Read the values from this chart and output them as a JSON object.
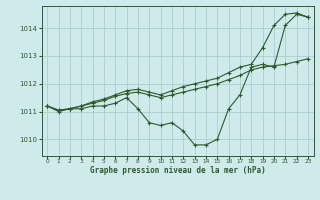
{
  "title": "Graphe pression niveau de la mer (hPa)",
  "background_color": "#ceeaea",
  "grid_color": "#aacece",
  "line_color": "#2d5a2d",
  "xlim": [
    -0.5,
    23.5
  ],
  "ylim": [
    1009.4,
    1014.8
  ],
  "xticks": [
    0,
    1,
    2,
    3,
    4,
    5,
    6,
    7,
    8,
    9,
    10,
    11,
    12,
    13,
    14,
    15,
    16,
    17,
    18,
    19,
    20,
    21,
    22,
    23
  ],
  "yticks": [
    1010,
    1011,
    1012,
    1013,
    1014
  ],
  "series": [
    {
      "x": [
        0,
        1,
        2,
        3,
        4,
        5,
        6,
        7,
        8,
        9,
        10,
        11,
        12,
        13,
        14,
        15,
        16,
        17,
        18,
        19,
        20,
        21,
        22,
        23
      ],
      "y": [
        1011.2,
        1011.0,
        1011.1,
        1011.1,
        1011.2,
        1011.2,
        1011.3,
        1011.5,
        1011.1,
        1010.6,
        1010.5,
        1010.6,
        1010.3,
        1009.8,
        1009.8,
        1010.0,
        1011.1,
        1011.6,
        1012.6,
        1012.7,
        1012.6,
        1014.1,
        1014.5,
        1014.4
      ]
    },
    {
      "x": [
        0,
        1,
        2,
        3,
        4,
        5,
        6,
        7,
        8,
        9,
        10,
        11,
        12,
        13,
        14,
        15,
        16,
        17,
        18,
        19,
        20,
        21,
        22,
        23
      ],
      "y": [
        1011.2,
        1011.05,
        1011.1,
        1011.2,
        1011.3,
        1011.4,
        1011.55,
        1011.65,
        1011.7,
        1011.6,
        1011.5,
        1011.6,
        1011.7,
        1011.8,
        1011.9,
        1012.0,
        1012.15,
        1012.3,
        1012.5,
        1012.6,
        1012.65,
        1012.7,
        1012.8,
        1012.9
      ]
    },
    {
      "x": [
        0,
        1,
        2,
        3,
        4,
        5,
        6,
        7,
        8,
        9,
        10,
        11,
        12,
        13,
        14,
        15,
        16,
        17,
        18,
        19,
        20,
        21,
        22,
        23
      ],
      "y": [
        1011.2,
        1011.05,
        1011.1,
        1011.2,
        1011.35,
        1011.45,
        1011.6,
        1011.75,
        1011.8,
        1011.7,
        1011.6,
        1011.75,
        1011.9,
        1012.0,
        1012.1,
        1012.2,
        1012.4,
        1012.6,
        1012.7,
        1013.3,
        1014.1,
        1014.5,
        1014.55,
        1014.4
      ]
    }
  ]
}
